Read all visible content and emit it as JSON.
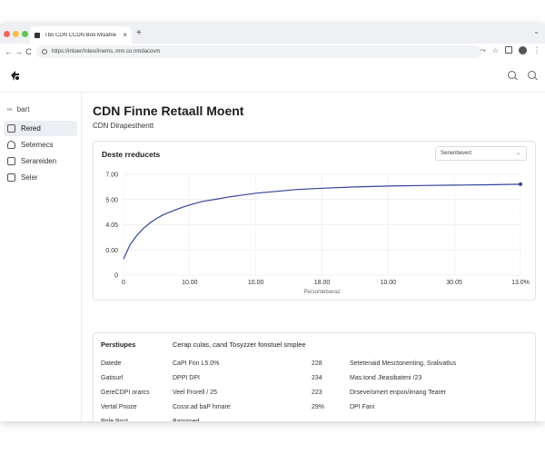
{
  "browser": {
    "tab_title": "Tbo CDN CCDN Boo Msiame",
    "url": "https://intoer//ntes//inems..mm.co.nmdacovm"
  },
  "sidebar": {
    "top_label": "bart",
    "top_prefix": "o≡",
    "items": [
      {
        "label": "Rered",
        "active": true
      },
      {
        "label": "Setemecs",
        "active": false
      },
      {
        "label": "Serareiden",
        "active": false
      },
      {
        "label": "Seler",
        "active": false
      }
    ]
  },
  "page": {
    "title": "CDN Finne Retaall Moent",
    "subtitle": "CDN Dirapesthentt"
  },
  "chart_card": {
    "title": "Deste rreducets",
    "select_value": "Senenbevert"
  },
  "chart_data": {
    "type": "line",
    "title": "Deste rreducets",
    "xlabel": "Persontetseraz",
    "ylabel": "",
    "x_tick_labels": [
      "0",
      "10.00",
      "10.00",
      "18.00",
      "10.00",
      "30.05",
      "13.0%"
    ],
    "y_tick_labels": [
      "0",
      "0.00",
      "4.05",
      "5.00",
      "7.00"
    ],
    "grid": true,
    "color": "#33459a",
    "series": [
      {
        "x": [
          0,
          0.05,
          0.1,
          0.2,
          0.3,
          0.4,
          0.5,
          0.6,
          0.7,
          0.8,
          0.9,
          1.0,
          1.1,
          1.2,
          1.4,
          1.6,
          1.8,
          2.0,
          2.3,
          2.6,
          3.0,
          3.5,
          4.0,
          4.5,
          5.0,
          5.5,
          6.0
        ],
        "y": [
          0.9,
          1.3,
          1.7,
          2.2,
          2.6,
          2.9,
          3.15,
          3.35,
          3.5,
          3.65,
          3.78,
          3.9,
          4.0,
          4.1,
          4.22,
          4.35,
          4.45,
          4.55,
          4.65,
          4.75,
          4.83,
          4.9,
          4.95,
          4.98,
          5.0,
          5.02,
          5.05
        ]
      }
    ]
  },
  "table": {
    "headers": [
      "Perstiupes",
      "Cerap culas, cand Tosyzzer fonstuel smplee",
      "",
      ""
    ],
    "rows": [
      [
        "Datede",
        "CaPI Fon L5.0%",
        "228",
        "Setetenaid Mesctonenting, Sralivatlus"
      ],
      [
        "Gatisurl",
        "DPPI DPI",
        "234",
        "Mas.tond Jleasibateni /23"
      ],
      [
        "GereCDPI orarcs",
        "Veel Frorell / 25",
        "223",
        "Drseve/omert enpon/imang Tearer"
      ],
      [
        "Vertal Pnoze",
        "Cossr.ad baP hmare",
        "29%",
        "DPI Fani"
      ],
      [
        "Pgle Poct",
        "Bamimed",
        "",
        ""
      ]
    ]
  }
}
